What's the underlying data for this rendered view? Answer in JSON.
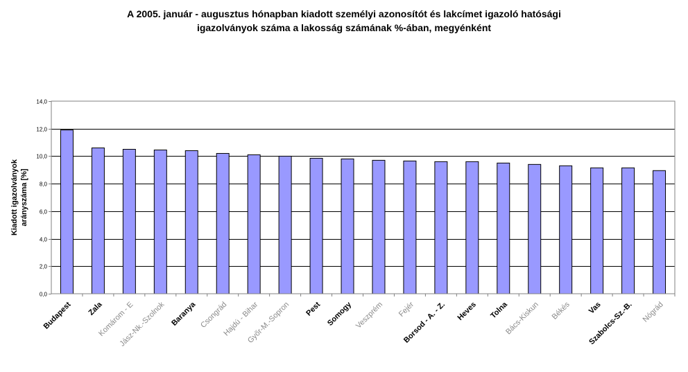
{
  "chart_data": {
    "type": "bar",
    "title_line1": "A 2005. január - augusztus hónapban  kiadott személyi azonosítót és lakcímet igazoló hatósági",
    "title_line2": "igazolványok száma a lakosság  számának %-ában, megyénként",
    "ylabel_line1": "Kiadott igazolványok",
    "ylabel_line2": "arányszáma [%]",
    "ylim": [
      0,
      14
    ],
    "yticks": [
      "0,0",
      "2,0",
      "4,0",
      "6,0",
      "8,0",
      "10,0",
      "12,0",
      "14,0"
    ],
    "grid": true,
    "bar_color": "#9999ff",
    "categories": [
      "Budapest",
      "Zala",
      "Komárom - E",
      "Jász-Nk.-Szolnok",
      "Baranya",
      "Csongrád",
      "Hajdú - Bihar",
      "Győr-M.-Sopron",
      "Pest",
      "Somogy",
      "Veszprém",
      "Fejér",
      "Borsod - A. - Z.",
      "Heves",
      "Tolna",
      "Bács-Kiskun",
      "Békés",
      "Vas",
      "Szabolcs-Sz.-B.",
      "Nógrád"
    ],
    "values": [
      11.9,
      10.6,
      10.5,
      10.45,
      10.4,
      10.2,
      10.1,
      10.0,
      9.85,
      9.8,
      9.7,
      9.65,
      9.6,
      9.6,
      9.5,
      9.4,
      9.3,
      9.15,
      9.15,
      8.95
    ],
    "label_style": [
      "bold",
      "bold",
      "light",
      "light",
      "bold",
      "light",
      "light",
      "light",
      "bold",
      "bold",
      "light",
      "light",
      "bold",
      "bold",
      "bold",
      "light",
      "light",
      "bold",
      "bold",
      "light"
    ]
  }
}
